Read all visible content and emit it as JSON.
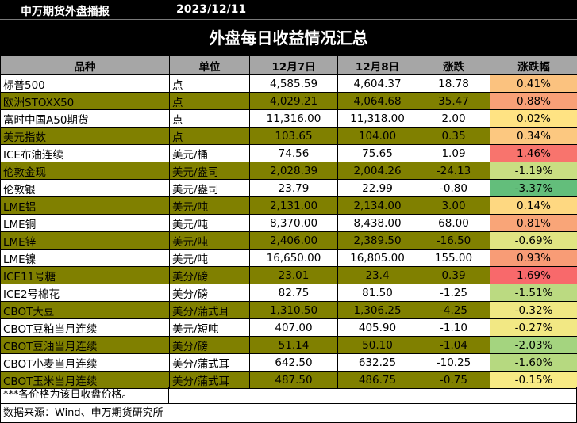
{
  "header": {
    "source": "申万期货外盘播报",
    "date": "2023/12/11"
  },
  "title": "外盘每日收益情况汇总",
  "columns": [
    "品种",
    "单位",
    "12月7日",
    "12月8日",
    "涨跌",
    "涨跌幅"
  ],
  "rows": [
    {
      "name": "标普500",
      "unit": "点",
      "d1": "4,585.59",
      "d2": "4,604.37",
      "chg": "18.78",
      "pct": "0.41%",
      "pct_color": "#fbc27f",
      "band": false
    },
    {
      "name": "欧洲STOXX50",
      "unit": "点",
      "d1": "4,029.21",
      "d2": "4,064.68",
      "chg": "35.47",
      "pct": "0.88%",
      "pct_color": "#f8a077",
      "band": true
    },
    {
      "name": "富时中国A50期货",
      "unit": "点",
      "d1": "11,316.00",
      "d2": "11,318.00",
      "chg": "2.00",
      "pct": "0.02%",
      "pct_color": "#ffe383",
      "band": false
    },
    {
      "name": "美元指数",
      "unit": "点",
      "d1": "103.65",
      "d2": "104.00",
      "chg": "0.35",
      "pct": "0.34%",
      "pct_color": "#fcc880",
      "band": true
    },
    {
      "name": "ICE布油连续",
      "unit": "美元/桶",
      "d1": "74.56",
      "d2": "75.65",
      "chg": "1.09",
      "pct": "1.46%",
      "pct_color": "#f8746d",
      "band": false
    },
    {
      "name": "伦敦金现",
      "unit": "美元/盎司",
      "d1": "2,028.39",
      "d2": "2,004.26",
      "chg": "-24.13",
      "pct": "-1.19%",
      "pct_color": "#c9de82",
      "band": true
    },
    {
      "name": "伦敦银",
      "unit": "美元/盎司",
      "d1": "23.79",
      "d2": "22.99",
      "chg": "-0.80",
      "pct": "-3.37%",
      "pct_color": "#63be7b",
      "band": false
    },
    {
      "name": "LME铝",
      "unit": "美元/吨",
      "d1": "2,131.00",
      "d2": "2,134.00",
      "chg": "3.00",
      "pct": "0.14%",
      "pct_color": "#fed881",
      "band": true
    },
    {
      "name": "LME铜",
      "unit": "美元/吨",
      "d1": "8,370.00",
      "d2": "8,438.00",
      "chg": "68.00",
      "pct": "0.81%",
      "pct_color": "#f9a578",
      "band": false
    },
    {
      "name": "LME锌",
      "unit": "美元/吨",
      "d1": "2,406.00",
      "d2": "2,389.50",
      "chg": "-16.50",
      "pct": "-0.69%",
      "pct_color": "#e0e482",
      "band": true
    },
    {
      "name": "LME镍",
      "unit": "美元/吨",
      "d1": "16,650.00",
      "d2": "16,805.00",
      "chg": "155.00",
      "pct": "0.93%",
      "pct_color": "#f89c76",
      "band": false
    },
    {
      "name": "ICE11号糖",
      "unit": "美分/磅",
      "d1": "23.01",
      "d2": "23.4",
      "chg": "0.39",
      "pct": "1.69%",
      "pct_color": "#f8696b",
      "band": true
    },
    {
      "name": "ICE2号棉花",
      "unit": "美分/磅",
      "d1": "82.75",
      "d2": "81.50",
      "chg": "-1.25",
      "pct": "-1.51%",
      "pct_color": "#bbda81",
      "band": false
    },
    {
      "name": "CBOT大豆",
      "unit": "美分/蒲式耳",
      "d1": "1,310.50",
      "d2": "1,306.25",
      "chg": "-4.25",
      "pct": "-0.32%",
      "pct_color": "#f0e883",
      "band": true
    },
    {
      "name": "CBOT豆粕当月连续",
      "unit": "美元/短吨",
      "d1": "407.00",
      "d2": "405.90",
      "chg": "-1.10",
      "pct": "-0.27%",
      "pct_color": "#f2e884",
      "band": false
    },
    {
      "name": "CBOT豆油当月连续",
      "unit": "美分/磅",
      "d1": "51.14",
      "d2": "50.10",
      "chg": "-1.04",
      "pct": "-2.03%",
      "pct_color": "#a4d47f",
      "band": true
    },
    {
      "name": "CBOT小麦当月连续",
      "unit": "美分/蒲式耳",
      "d1": "642.50",
      "d2": "632.25",
      "chg": "-10.25",
      "pct": "-1.60%",
      "pct_color": "#b6d980",
      "band": false
    },
    {
      "name": "CBOT玉米当月连续",
      "unit": "美分/蒲式耳",
      "d1": "487.50",
      "d2": "486.75",
      "chg": "-0.75",
      "pct": "-0.15%",
      "pct_color": "#f7ea84",
      "band": true
    }
  ],
  "footnote": "***各价格为该日收盘价格。",
  "data_source": "数据来源：Wind、申万期货研究所"
}
